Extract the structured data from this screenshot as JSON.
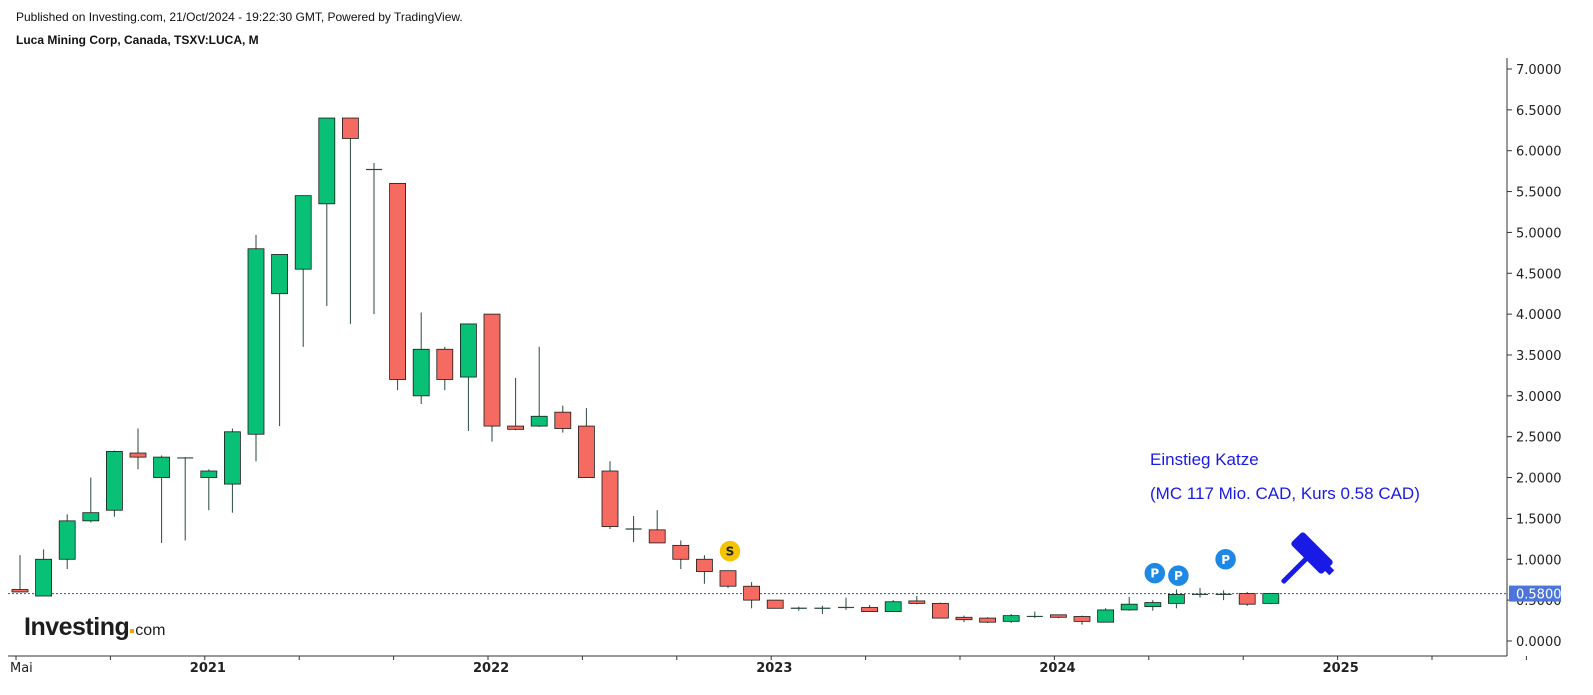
{
  "header": {
    "published": "Published on Investing.com, 21/Oct/2024 - 19:22:30 GMT, Powered by TradingView.",
    "symbol": "Luca Mining Corp, Canada, TSXV:LUCA, M"
  },
  "logo": {
    "brand": "Investing",
    "domain": "com"
  },
  "annotations": {
    "line1": "Einstieg Katze",
    "line2": "(MC 117 Mio. CAD, Kurs 0.58 CAD)"
  },
  "markers": [
    {
      "label": "S",
      "type": "sell",
      "date": "2022-11",
      "value": 1.1,
      "color": "#f5c400"
    },
    {
      "label": "P",
      "type": "purchase",
      "date": "2024-05",
      "value": 0.83,
      "color": "#1e88e5"
    },
    {
      "label": "P",
      "type": "purchase",
      "date": "2024-06",
      "value": 0.8,
      "color": "#1e88e5"
    },
    {
      "label": "P",
      "type": "purchase",
      "date": "2024-08",
      "value": 1.0,
      "color": "#1e88e5"
    }
  ],
  "gavel_icon": {
    "icon": "gavel-icon",
    "color": "#1a1ae6"
  },
  "colors": {
    "up": "#09c176",
    "down": "#f56b61",
    "wick": "#2a4a3a",
    "price_line": "#2c50c8",
    "price_label_bg": "#4d74d9"
  },
  "chart_data": {
    "type": "candlestick",
    "title": "Luca Mining Corp, Canada, TSXV:LUCA, M",
    "interval": "monthly",
    "ylim": [
      -0.1,
      7.1
    ],
    "y_ticks": [
      "0.0000",
      "0.5000",
      "1.0000",
      "1.5000",
      "2.0000",
      "2.5000",
      "3.0000",
      "3.5000",
      "4.0000",
      "4.5000",
      "5.0000",
      "5.5000",
      "6.0000",
      "6.5000",
      "7.0000"
    ],
    "x_labels": [
      {
        "text": "Mai",
        "date": "2020-05",
        "bold": false
      },
      {
        "text": "2021",
        "date": "2021-01",
        "bold": true
      },
      {
        "text": "2022",
        "date": "2022-01",
        "bold": true
      },
      {
        "text": "2023",
        "date": "2023-01",
        "bold": true
      },
      {
        "text": "2024",
        "date": "2024-01",
        "bold": true
      },
      {
        "text": "2025",
        "date": "2025-01",
        "bold": true
      }
    ],
    "current_price": {
      "value": 0.58,
      "label": "0.5800"
    },
    "candles": [
      {
        "date": "2020-05",
        "o": 0.63,
        "h": 1.05,
        "l": 0.6,
        "c": 0.6
      },
      {
        "date": "2020-06",
        "o": 0.55,
        "h": 1.12,
        "l": 0.55,
        "c": 1.0
      },
      {
        "date": "2020-07",
        "o": 1.0,
        "h": 1.55,
        "l": 0.88,
        "c": 1.47
      },
      {
        "date": "2020-08",
        "o": 1.47,
        "h": 2.0,
        "l": 1.45,
        "c": 1.57
      },
      {
        "date": "2020-09",
        "o": 1.6,
        "h": 2.33,
        "l": 1.52,
        "c": 2.32
      },
      {
        "date": "2020-10",
        "o": 2.3,
        "h": 2.6,
        "l": 2.1,
        "c": 2.25
      },
      {
        "date": "2020-11",
        "o": 2.0,
        "h": 2.27,
        "l": 1.2,
        "c": 2.25
      },
      {
        "date": "2020-12",
        "o": 2.24,
        "h": 2.25,
        "l": 1.23,
        "c": 2.23
      },
      {
        "date": "2021-01",
        "o": 2.0,
        "h": 2.1,
        "l": 1.6,
        "c": 2.08
      },
      {
        "date": "2021-02",
        "o": 1.92,
        "h": 2.6,
        "l": 1.57,
        "c": 2.56
      },
      {
        "date": "2021-03",
        "o": 2.53,
        "h": 4.97,
        "l": 2.2,
        "c": 4.8
      },
      {
        "date": "2021-04",
        "o": 4.25,
        "h": 4.73,
        "l": 2.63,
        "c": 4.73
      },
      {
        "date": "2021-05",
        "o": 4.55,
        "h": 5.45,
        "l": 3.6,
        "c": 5.45
      },
      {
        "date": "2021-06",
        "o": 5.35,
        "h": 6.4,
        "l": 4.1,
        "c": 6.4
      },
      {
        "date": "2021-07",
        "o": 6.4,
        "h": 6.4,
        "l": 3.88,
        "c": 6.15
      },
      {
        "date": "2021-08",
        "o": 5.77,
        "h": 5.85,
        "l": 4.0,
        "c": 5.75
      },
      {
        "date": "2021-09",
        "o": 5.6,
        "h": 5.6,
        "l": 3.07,
        "c": 3.2
      },
      {
        "date": "2021-10",
        "o": 3.0,
        "h": 4.02,
        "l": 2.9,
        "c": 3.57
      },
      {
        "date": "2021-11",
        "o": 3.57,
        "h": 3.6,
        "l": 3.07,
        "c": 3.2
      },
      {
        "date": "2021-12",
        "o": 3.23,
        "h": 3.88,
        "l": 2.57,
        "c": 3.88
      },
      {
        "date": "2022-01",
        "o": 4.0,
        "h": 4.0,
        "l": 2.44,
        "c": 2.63
      },
      {
        "date": "2022-02",
        "o": 2.63,
        "h": 3.22,
        "l": 2.58,
        "c": 2.59
      },
      {
        "date": "2022-03",
        "o": 2.63,
        "h": 3.6,
        "l": 2.62,
        "c": 2.75
      },
      {
        "date": "2022-04",
        "o": 2.8,
        "h": 2.88,
        "l": 2.55,
        "c": 2.6
      },
      {
        "date": "2022-05",
        "o": 2.63,
        "h": 2.85,
        "l": 2.0,
        "c": 2.0
      },
      {
        "date": "2022-06",
        "o": 2.08,
        "h": 2.2,
        "l": 1.37,
        "c": 1.4
      },
      {
        "date": "2022-07",
        "o": 1.37,
        "h": 1.53,
        "l": 1.21,
        "c": 1.36
      },
      {
        "date": "2022-08",
        "o": 1.36,
        "h": 1.6,
        "l": 1.2,
        "c": 1.2
      },
      {
        "date": "2022-09",
        "o": 1.17,
        "h": 1.23,
        "l": 0.88,
        "c": 1.0
      },
      {
        "date": "2022-10",
        "o": 1.0,
        "h": 1.05,
        "l": 0.7,
        "c": 0.85
      },
      {
        "date": "2022-11",
        "o": 0.86,
        "h": 0.86,
        "l": 0.65,
        "c": 0.67
      },
      {
        "date": "2022-12",
        "o": 0.67,
        "h": 0.72,
        "l": 0.4,
        "c": 0.5
      },
      {
        "date": "2023-01",
        "o": 0.5,
        "h": 0.5,
        "l": 0.4,
        "c": 0.4
      },
      {
        "date": "2023-02",
        "o": 0.4,
        "h": 0.42,
        "l": 0.37,
        "c": 0.38
      },
      {
        "date": "2023-03",
        "o": 0.4,
        "h": 0.43,
        "l": 0.33,
        "c": 0.39
      },
      {
        "date": "2023-04",
        "o": 0.4,
        "h": 0.53,
        "l": 0.38,
        "c": 0.41
      },
      {
        "date": "2023-05",
        "o": 0.41,
        "h": 0.44,
        "l": 0.36,
        "c": 0.36
      },
      {
        "date": "2023-06",
        "o": 0.36,
        "h": 0.5,
        "l": 0.36,
        "c": 0.48
      },
      {
        "date": "2023-07",
        "o": 0.49,
        "h": 0.55,
        "l": 0.45,
        "c": 0.46
      },
      {
        "date": "2023-08",
        "o": 0.46,
        "h": 0.47,
        "l": 0.28,
        "c": 0.28
      },
      {
        "date": "2023-09",
        "o": 0.29,
        "h": 0.31,
        "l": 0.23,
        "c": 0.26
      },
      {
        "date": "2023-10",
        "o": 0.28,
        "h": 0.29,
        "l": 0.22,
        "c": 0.23
      },
      {
        "date": "2023-11",
        "o": 0.24,
        "h": 0.33,
        "l": 0.22,
        "c": 0.31
      },
      {
        "date": "2023-12",
        "o": 0.3,
        "h": 0.36,
        "l": 0.28,
        "c": 0.3
      },
      {
        "date": "2024-01",
        "o": 0.32,
        "h": 0.32,
        "l": 0.28,
        "c": 0.29
      },
      {
        "date": "2024-02",
        "o": 0.3,
        "h": 0.31,
        "l": 0.2,
        "c": 0.24
      },
      {
        "date": "2024-03",
        "o": 0.23,
        "h": 0.4,
        "l": 0.23,
        "c": 0.38
      },
      {
        "date": "2024-04",
        "o": 0.38,
        "h": 0.54,
        "l": 0.37,
        "c": 0.45
      },
      {
        "date": "2024-05",
        "o": 0.42,
        "h": 0.5,
        "l": 0.37,
        "c": 0.47
      },
      {
        "date": "2024-06",
        "o": 0.46,
        "h": 0.63,
        "l": 0.4,
        "c": 0.57
      },
      {
        "date": "2024-07",
        "o": 0.57,
        "h": 0.65,
        "l": 0.53,
        "c": 0.56
      },
      {
        "date": "2024-08",
        "o": 0.57,
        "h": 0.62,
        "l": 0.5,
        "c": 0.55
      },
      {
        "date": "2024-09",
        "o": 0.58,
        "h": 0.6,
        "l": 0.43,
        "c": 0.45
      },
      {
        "date": "2024-10",
        "o": 0.46,
        "h": 0.58,
        "l": 0.45,
        "c": 0.58
      }
    ]
  }
}
